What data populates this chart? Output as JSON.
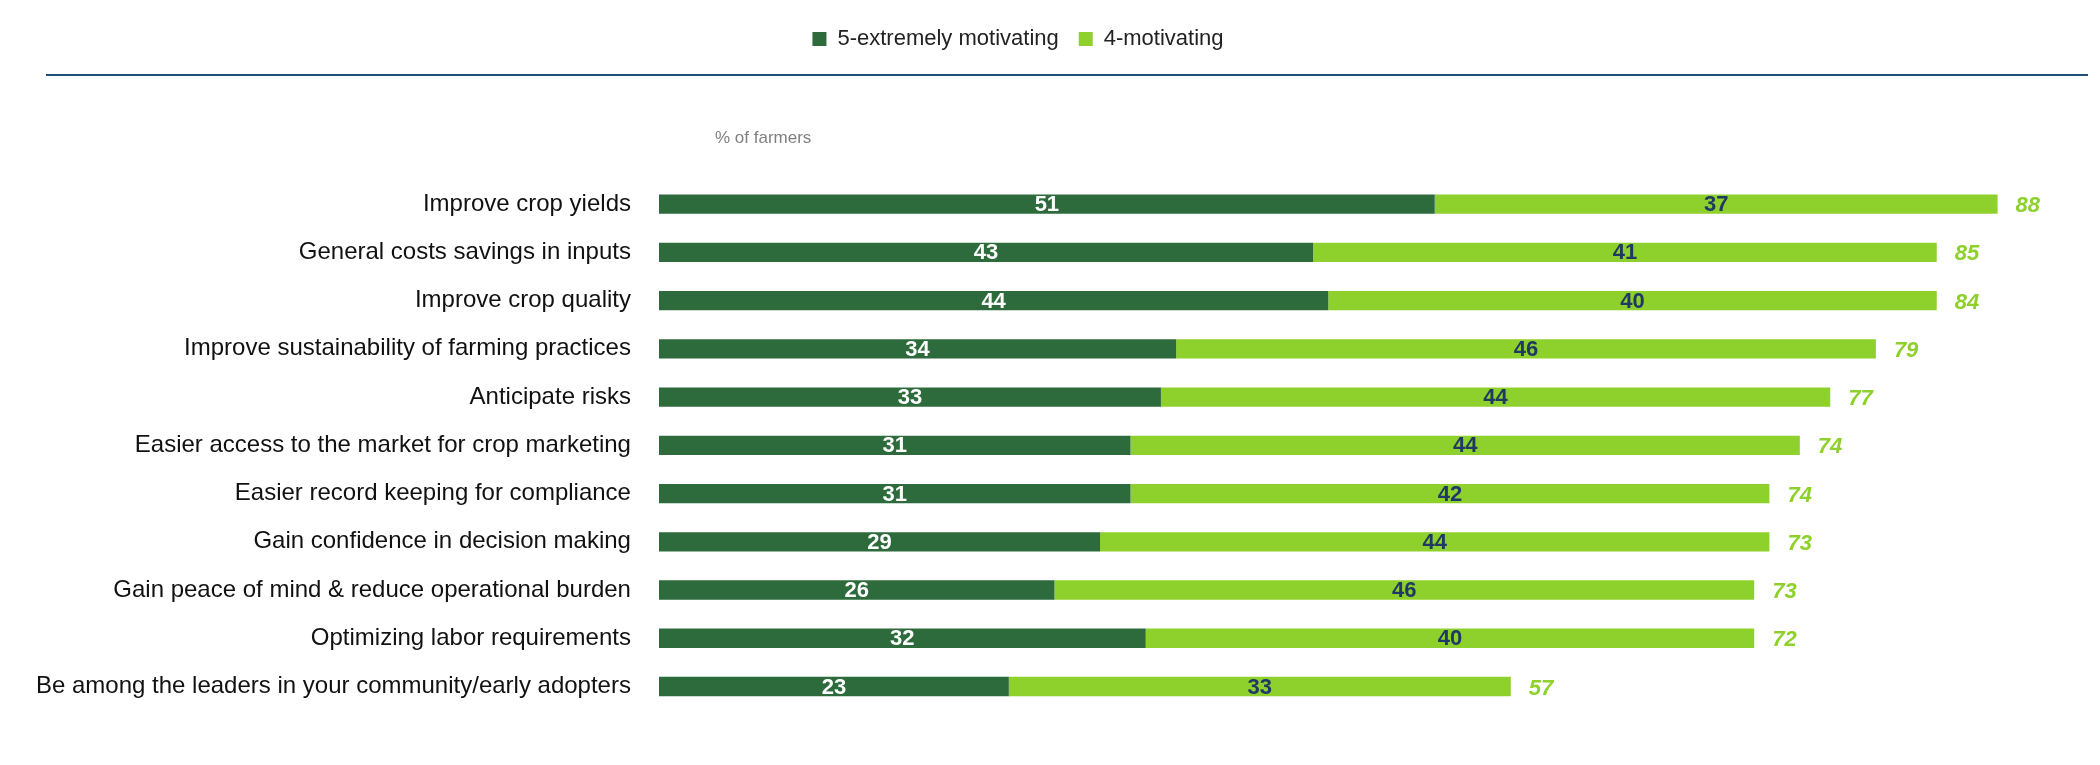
{
  "chart_data": {
    "type": "bar",
    "orientation": "horizontal",
    "stacked": true,
    "legend": "top",
    "data_labels": true,
    "tick_labels": "y",
    "grid": false,
    "annotations": [
      "% of farmers"
    ],
    "categories": [
      "Improve crop yields",
      "General costs savings in inputs",
      "Improve crop quality",
      "Improve sustainability of farming practices",
      "Anticipate risks",
      "Easier access to the market for crop marketing",
      "Easier record keeping for compliance",
      "Gain confidence in decision making",
      "Gain peace of mind & reduce operational burden",
      "Optimizing labor requirements",
      "Be among the leaders in your community/early adopters"
    ],
    "series": [
      {
        "name": "5-extremely motivating",
        "color": "#2e6b3c",
        "values": [
          51,
          43,
          44,
          34,
          33,
          31,
          31,
          29,
          26,
          32,
          23
        ]
      },
      {
        "name": "4-motivating",
        "color": "#8fd12c",
        "values": [
          37,
          41,
          40,
          46,
          44,
          44,
          42,
          44,
          46,
          40,
          33
        ]
      }
    ],
    "totals": [
      "88",
      "85",
      "84",
      "79",
      "77",
      "74",
      "74",
      "73",
      "73",
      "72",
      "57"
    ]
  }
}
